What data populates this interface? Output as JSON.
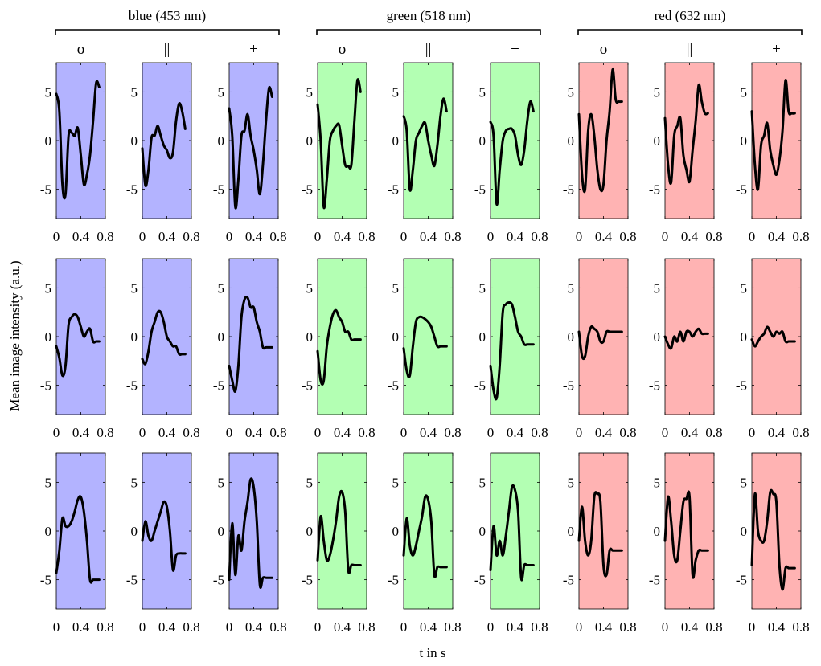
{
  "figure": {
    "ylabel": "Mean image intensity (a.u.)",
    "xlabel": "t in s"
  },
  "groups": [
    {
      "label": "blue (453 nm)",
      "color": "#b3b3ff"
    },
    {
      "label": "green (518 nm)",
      "color": "#b3ffb3"
    },
    {
      "label": "red (632 nm)",
      "color": "#ffb3b3"
    }
  ],
  "column_symbols": [
    "o",
    "||",
    "+"
  ],
  "chart_data": {
    "type": "line",
    "layout": "small-multiples 3 rows x 9 columns",
    "xlim": [
      0,
      0.8
    ],
    "ylim": [
      -8,
      8
    ],
    "xticks": [
      "0",
      "0.4",
      "0.8"
    ],
    "yticks": [
      "5",
      "0",
      "-5"
    ],
    "line_color": "#000000",
    "x": [
      0.0,
      0.05,
      0.1,
      0.15,
      0.2,
      0.25,
      0.3,
      0.35,
      0.4,
      0.45,
      0.5,
      0.55,
      0.6,
      0.65,
      0.7
    ],
    "panels": [
      {
        "row": 1,
        "group": "blue (453 nm)",
        "column": "o",
        "y": [
          4.8,
          3.0,
          -4.5,
          -5.5,
          0.5,
          0.8,
          0.5,
          1.3,
          -1.5,
          -4.5,
          -3.5,
          -1.5,
          2.0,
          5.9,
          5.5
        ]
      },
      {
        "row": 1,
        "group": "blue (453 nm)",
        "column": "||",
        "y": [
          -0.8,
          -4.6,
          -3.0,
          0.3,
          0.5,
          1.5,
          0.5,
          -0.5,
          -1.0,
          -1.8,
          -1.2,
          2.0,
          3.8,
          3.0,
          1.2
        ]
      },
      {
        "row": 1,
        "group": "blue (453 nm)",
        "column": "+",
        "y": [
          3.3,
          0.5,
          -6.8,
          -4.0,
          0.5,
          1.0,
          2.7,
          0.5,
          -1.0,
          -3.0,
          -5.5,
          -2.5,
          2.0,
          5.4,
          4.5
        ]
      },
      {
        "row": 1,
        "group": "green (518 nm)",
        "column": "o",
        "y": [
          3.7,
          0.0,
          -6.8,
          -4.0,
          0.0,
          1.0,
          1.5,
          1.6,
          -0.5,
          -2.5,
          -2.6,
          -2.5,
          2.0,
          6.2,
          5.0
        ]
      },
      {
        "row": 1,
        "group": "green (518 nm)",
        "column": "||",
        "y": [
          2.5,
          1.0,
          -5.0,
          -3.0,
          0.0,
          0.8,
          1.5,
          1.8,
          0.0,
          -1.5,
          -2.6,
          -0.5,
          2.5,
          4.3,
          3.0
        ]
      },
      {
        "row": 1,
        "group": "green (518 nm)",
        "column": "+",
        "y": [
          1.9,
          0.5,
          -6.5,
          -3.0,
          0.0,
          1.0,
          1.2,
          1.2,
          0.5,
          -1.5,
          -2.5,
          -1.0,
          2.0,
          4.0,
          3.0
        ]
      },
      {
        "row": 1,
        "group": "red (632 nm)",
        "column": "o",
        "y": [
          2.7,
          -3.5,
          -5.0,
          1.0,
          2.7,
          0.5,
          -3.0,
          -5.0,
          -4.5,
          0.0,
          3.0,
          7.3,
          4.2,
          4.0,
          4.0
        ]
      },
      {
        "row": 1,
        "group": "red (632 nm)",
        "column": "||",
        "y": [
          2.3,
          -2.5,
          -4.3,
          0.5,
          1.5,
          2.3,
          -1.5,
          -3.0,
          -4.2,
          -1.0,
          2.0,
          5.7,
          4.0,
          2.8,
          2.8
        ]
      },
      {
        "row": 1,
        "group": "red (632 nm)",
        "column": "+",
        "y": [
          3.0,
          -2.5,
          -5.0,
          -0.5,
          0.5,
          1.8,
          -1.0,
          -2.5,
          -3.5,
          -2.0,
          1.0,
          6.2,
          3.0,
          2.8,
          2.8
        ]
      },
      {
        "row": 2,
        "group": "blue (453 nm)",
        "column": "o",
        "y": [
          -1.0,
          -2.2,
          -4.0,
          -3.0,
          1.2,
          2.0,
          2.3,
          2.0,
          1.0,
          0.0,
          0.5,
          0.8,
          -0.5,
          -0.5,
          -0.5
        ]
      },
      {
        "row": 2,
        "group": "blue (453 nm)",
        "column": "||",
        "y": [
          -2.3,
          -2.8,
          -1.5,
          0.5,
          1.5,
          2.5,
          2.5,
          1.5,
          0.0,
          -0.5,
          -1.0,
          -1.0,
          -1.8,
          -1.8,
          -1.8
        ]
      },
      {
        "row": 2,
        "group": "blue (453 nm)",
        "column": "+",
        "y": [
          -3.0,
          -4.5,
          -5.6,
          -3.0,
          2.0,
          3.8,
          4.0,
          3.0,
          3.0,
          1.5,
          0.5,
          -1.1,
          -1.1,
          -1.1,
          -1.1
        ]
      },
      {
        "row": 2,
        "group": "green (518 nm)",
        "column": "o",
        "y": [
          -1.5,
          -4.5,
          -4.5,
          -1.0,
          1.0,
          2.3,
          2.7,
          2.0,
          1.5,
          0.5,
          0.5,
          -0.3,
          -0.3,
          -0.3,
          -0.3
        ]
      },
      {
        "row": 2,
        "group": "green (518 nm)",
        "column": "||",
        "y": [
          -1.2,
          -3.5,
          -4.0,
          -1.0,
          1.5,
          2.0,
          2.0,
          1.8,
          1.5,
          1.0,
          0.0,
          -1.0,
          -1.0,
          -1.0,
          -1.0
        ]
      },
      {
        "row": 2,
        "group": "green (518 nm)",
        "column": "+",
        "y": [
          -3.0,
          -5.5,
          -6.3,
          -3.0,
          2.5,
          3.3,
          3.5,
          3.3,
          2.0,
          0.5,
          0.0,
          -0.8,
          -0.8,
          -0.8,
          -0.8
        ]
      },
      {
        "row": 2,
        "group": "red (632 nm)",
        "column": "o",
        "y": [
          0.5,
          -2.0,
          -2.0,
          0.0,
          1.0,
          0.8,
          0.5,
          -0.5,
          -0.5,
          0.5,
          0.5,
          0.5,
          0.5,
          0.5,
          0.5
        ]
      },
      {
        "row": 2,
        "group": "red (632 nm)",
        "column": "||",
        "y": [
          0.0,
          -0.8,
          -1.2,
          0.0,
          -0.5,
          0.5,
          -0.5,
          0.5,
          0.5,
          0.0,
          0.5,
          0.8,
          0.3,
          0.3,
          0.3
        ]
      },
      {
        "row": 2,
        "group": "red (632 nm)",
        "column": "+",
        "y": [
          -0.3,
          -1.0,
          -0.5,
          0.0,
          0.3,
          1.0,
          0.5,
          0.0,
          0.5,
          0.3,
          0.5,
          -0.5,
          -0.5,
          -0.5,
          -0.5
        ]
      },
      {
        "row": 3,
        "group": "blue (453 nm)",
        "column": "o",
        "y": [
          -4.3,
          -2.0,
          1.3,
          0.5,
          0.5,
          1.0,
          2.0,
          3.2,
          3.5,
          2.0,
          -1.0,
          -5.0,
          -5.0,
          -5.0,
          -5.0
        ]
      },
      {
        "row": 3,
        "group": "blue (453 nm)",
        "column": "||",
        "y": [
          -1.0,
          1.0,
          -0.5,
          -1.0,
          0.0,
          1.0,
          2.0,
          3.0,
          2.5,
          0.0,
          -4.0,
          -2.5,
          -2.3,
          -2.3,
          -2.3
        ]
      },
      {
        "row": 3,
        "group": "blue (453 nm)",
        "column": "+",
        "y": [
          -5.0,
          0.8,
          -4.5,
          -0.5,
          -2.0,
          1.0,
          3.0,
          5.3,
          4.5,
          1.0,
          -5.5,
          -4.8,
          -4.8,
          -4.8,
          -4.8
        ]
      },
      {
        "row": 3,
        "group": "green (518 nm)",
        "column": "o",
        "y": [
          -3.0,
          1.5,
          -1.0,
          -3.0,
          -2.5,
          -1.0,
          1.0,
          3.5,
          4.0,
          2.0,
          -4.0,
          -3.5,
          -3.5,
          -3.5,
          -3.5
        ]
      },
      {
        "row": 3,
        "group": "green (518 nm)",
        "column": "||",
        "y": [
          -2.5,
          1.3,
          -1.5,
          -2.5,
          -1.5,
          0.0,
          1.5,
          3.5,
          3.2,
          1.0,
          -4.5,
          -3.7,
          -3.7,
          -3.7,
          -3.7
        ]
      },
      {
        "row": 3,
        "group": "green (518 nm)",
        "column": "+",
        "y": [
          -4.0,
          0.5,
          -2.5,
          -1.0,
          -2.5,
          -0.5,
          2.0,
          4.5,
          4.2,
          2.0,
          -4.8,
          -3.5,
          -3.5,
          -3.5,
          -3.5
        ]
      },
      {
        "row": 3,
        "group": "red (632 nm)",
        "column": "o",
        "y": [
          -1.0,
          2.5,
          -1.0,
          -2.5,
          -1.0,
          3.5,
          3.8,
          3.0,
          -3.5,
          -4.5,
          -2.0,
          -2.0,
          -2.0,
          -2.0,
          -2.0
        ]
      },
      {
        "row": 3,
        "group": "red (632 nm)",
        "column": "||",
        "y": [
          -1.0,
          3.5,
          1.0,
          -2.5,
          -3.0,
          0.0,
          3.0,
          3.3,
          3.5,
          -4.5,
          -3.0,
          -2.0,
          -2.0,
          -2.0,
          -2.0
        ]
      },
      {
        "row": 3,
        "group": "red (632 nm)",
        "column": "+",
        "y": [
          -3.5,
          3.8,
          0.0,
          -1.0,
          -1.0,
          1.0,
          4.0,
          3.8,
          3.0,
          -3.5,
          -6.0,
          -3.8,
          -3.8,
          -3.8,
          -3.8
        ]
      }
    ]
  }
}
